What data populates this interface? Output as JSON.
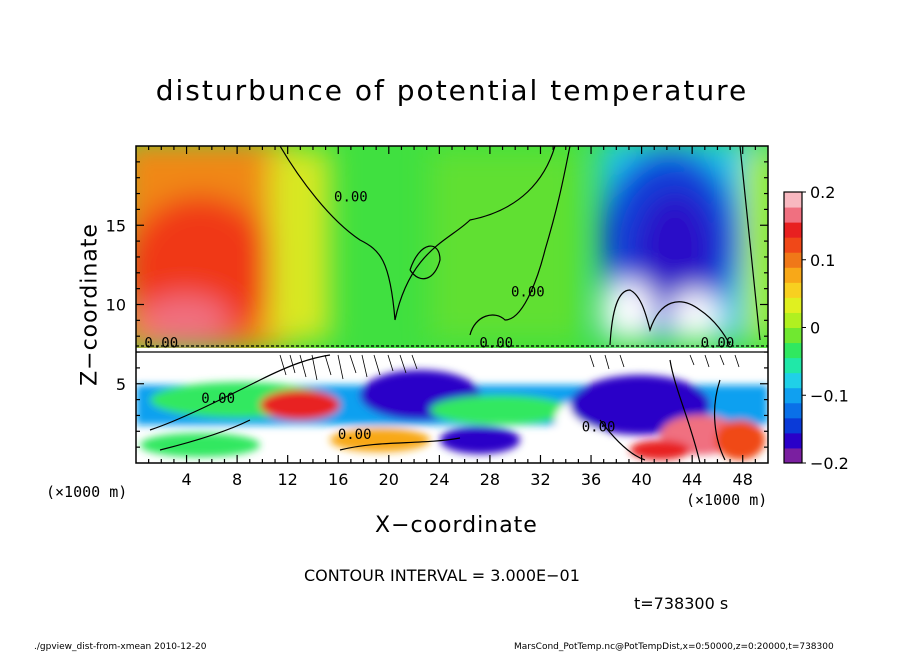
{
  "chart_data": {
    "type": "heatmap",
    "title": "disturbunce of potential temperature",
    "xlabel": "X−coordinate",
    "ylabel": "Z−coordinate",
    "x_unit": "(×1000 m)",
    "x_ticks": [
      4,
      8,
      12,
      16,
      20,
      24,
      28,
      32,
      36,
      40,
      44,
      48
    ],
    "y_ticks": [
      5,
      10,
      15
    ],
    "xlim": [
      0,
      50
    ],
    "ylim": [
      0,
      20
    ],
    "colorbar": {
      "range": [
        -0.2,
        0.2
      ],
      "ticks": [
        {
          "value": 0.2,
          "label": "0.2"
        },
        {
          "value": 0.1,
          "label": "0.1"
        },
        {
          "value": 0,
          "label": "0"
        },
        {
          "value": -0.1,
          "label": "−0.1"
        },
        {
          "value": -0.2,
          "label": "−0.2"
        }
      ],
      "colors": [
        "#7a1fa0",
        "#2a00c8",
        "#0a3ad8",
        "#0a70e8",
        "#10a0f0",
        "#20d0e8",
        "#20e8a8",
        "#30e860",
        "#70e830",
        "#b0f020",
        "#e0f020",
        "#f8d020",
        "#f8a818",
        "#f07818",
        "#f04818",
        "#e82020",
        "#f07080",
        "#f8b8c0"
      ]
    },
    "contour_interval": "CONTOUR INTERVAL = 3.000E−01",
    "contour_labels": [
      {
        "x": 2.0,
        "z": 7.3,
        "text": "0.00"
      },
      {
        "x": 6.5,
        "z": 3.8,
        "text": "0.00"
      },
      {
        "x": 17.0,
        "z": 16.5,
        "text": "0.00"
      },
      {
        "x": 17.3,
        "z": 1.5,
        "text": "0.00"
      },
      {
        "x": 28.5,
        "z": 7.3,
        "text": "0.00"
      },
      {
        "x": 31.0,
        "z": 10.5,
        "text": "0.00"
      },
      {
        "x": 36.6,
        "z": 2.0,
        "text": "0.00"
      },
      {
        "x": 46.0,
        "z": 7.3,
        "text": "0.00"
      }
    ],
    "time_label": "t=738300 s"
  },
  "footer": {
    "left": "./gpview_dist-from-xmean  2010-12-20",
    "right": "MarsCond_PotTemp.nc@PotTempDist,x=0:50000,z=0:20000,t=738300"
  }
}
